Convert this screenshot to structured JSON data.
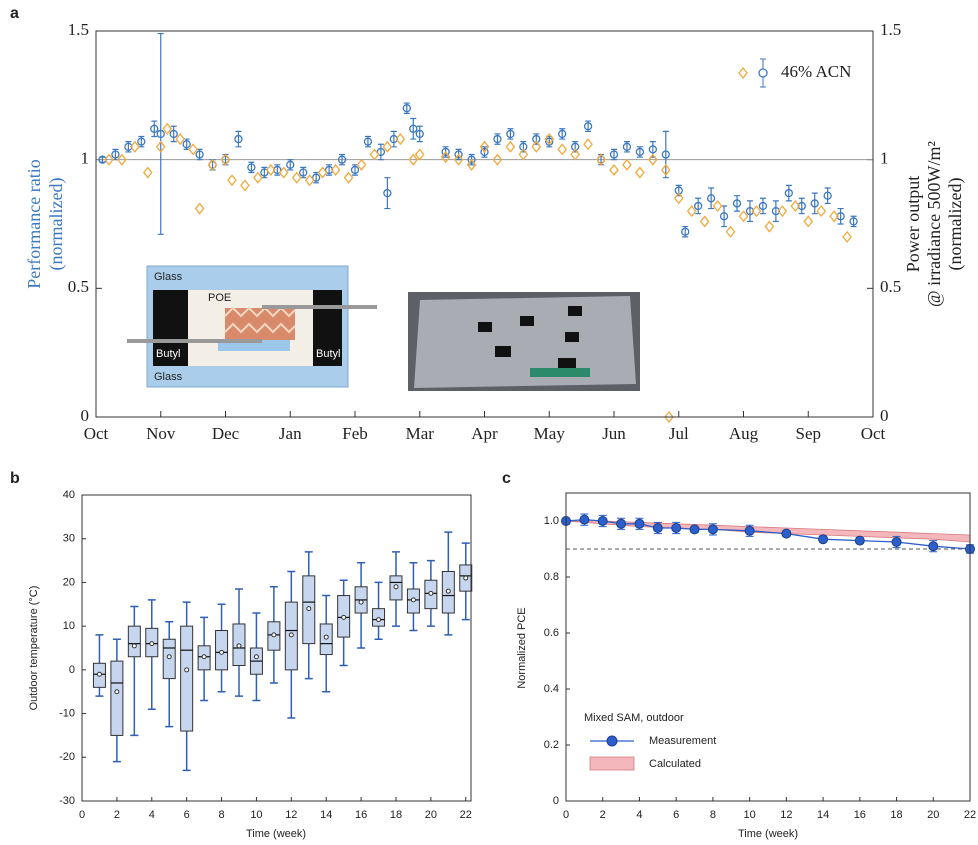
{
  "chart_data": [
    {
      "type": "scatter",
      "panel": "a",
      "ylabel": [
        "Performance ratio",
        "(normalized)"
      ],
      "y2label": [
        "Power output",
        "@ irradiance 500W/m²",
        "(normalized)"
      ],
      "xlim": [
        0,
        12
      ],
      "xticks": [
        {
          "value": 0,
          "label": "Oct"
        },
        {
          "value": 1,
          "label": "Nov"
        },
        {
          "value": 2,
          "label": "Dec"
        },
        {
          "value": 3,
          "label": "Jan"
        },
        {
          "value": 4,
          "label": "Feb"
        },
        {
          "value": 5,
          "label": "Mar"
        },
        {
          "value": 6,
          "label": "Apr"
        },
        {
          "value": 7,
          "label": "May"
        },
        {
          "value": 8,
          "label": "Jun"
        },
        {
          "value": 9,
          "label": "Jul"
        },
        {
          "value": 10,
          "label": "Aug"
        },
        {
          "value": 11,
          "label": "Sep"
        },
        {
          "value": 12,
          "label": "Oct"
        }
      ],
      "ylim": [
        0,
        1.5
      ],
      "yticks": [
        0,
        0.5,
        1,
        1.5
      ],
      "y2lim": [
        0,
        1.5
      ],
      "y2ticks": [
        0,
        0.5,
        1,
        1.5
      ],
      "hline": 1,
      "legend": "upper right",
      "series": [
        {
          "name": "46% ACN",
          "color": "#3b78c2",
          "marker": "circle",
          "x": [
            0.1,
            0.3,
            0.5,
            0.7,
            0.9,
            1.0,
            1.2,
            1.4,
            1.6,
            1.8,
            2.0,
            2.2,
            2.4,
            2.6,
            2.8,
            3.0,
            3.2,
            3.4,
            3.6,
            3.8,
            4.0,
            4.2,
            4.4,
            4.5,
            4.6,
            4.8,
            4.9,
            5.0,
            5.4,
            5.6,
            5.8,
            6.0,
            6.2,
            6.4,
            6.6,
            6.8,
            7.0,
            7.2,
            7.4,
            7.6,
            7.8,
            8.0,
            8.2,
            8.4,
            8.6,
            8.8,
            9.0,
            9.1,
            9.3,
            9.5,
            9.7,
            9.9,
            10.1,
            10.3,
            10.5,
            10.7,
            10.9,
            11.1,
            11.3,
            11.5,
            11.7
          ],
          "values": [
            1.0,
            1.02,
            1.05,
            1.07,
            1.12,
            1.1,
            1.1,
            1.06,
            1.02,
            0.98,
            1.0,
            1.08,
            0.97,
            0.95,
            0.96,
            0.98,
            0.95,
            0.93,
            0.96,
            1.0,
            0.96,
            1.07,
            1.03,
            0.87,
            1.08,
            1.2,
            1.12,
            1.1,
            1.03,
            1.02,
            1.0,
            1.03,
            1.08,
            1.1,
            1.05,
            1.08,
            1.07,
            1.1,
            1.05,
            1.13,
            1.0,
            1.02,
            1.05,
            1.03,
            1.04,
            1.02,
            0.88,
            0.72,
            0.82,
            0.85,
            0.78,
            0.83,
            0.8,
            0.82,
            0.8,
            0.87,
            0.82,
            0.83,
            0.86,
            0.78,
            0.76
          ],
          "errors": [
            0.01,
            0.02,
            0.02,
            0.02,
            0.03,
            0.39,
            0.03,
            0.02,
            0.02,
            0.02,
            0.02,
            0.03,
            0.02,
            0.02,
            0.02,
            0.02,
            0.02,
            0.02,
            0.02,
            0.02,
            0.02,
            0.02,
            0.03,
            0.06,
            0.03,
            0.02,
            0.04,
            0.03,
            0.02,
            0.02,
            0.02,
            0.02,
            0.02,
            0.02,
            0.02,
            0.02,
            0.02,
            0.02,
            0.02,
            0.02,
            0.02,
            0.02,
            0.02,
            0.02,
            0.03,
            0.09,
            0.02,
            0.02,
            0.03,
            0.04,
            0.04,
            0.03,
            0.04,
            0.03,
            0.04,
            0.03,
            0.03,
            0.04,
            0.03,
            0.03,
            0.02
          ]
        },
        {
          "color": "#f2a93b",
          "marker": "diamond",
          "axis": "y2",
          "x": [
            0.2,
            0.4,
            0.6,
            0.8,
            1.0,
            1.1,
            1.3,
            1.5,
            1.6,
            1.8,
            2.0,
            2.1,
            2.3,
            2.5,
            2.7,
            2.9,
            3.1,
            3.3,
            3.5,
            3.7,
            3.9,
            4.1,
            4.3,
            4.5,
            4.7,
            4.9,
            5.0,
            5.4,
            5.6,
            5.8,
            6.0,
            6.2,
            6.4,
            6.6,
            6.8,
            7.0,
            7.2,
            7.4,
            7.6,
            7.8,
            8.0,
            8.2,
            8.4,
            8.6,
            8.8,
            8.85,
            9.0,
            9.2,
            9.4,
            9.6,
            9.8,
            10.0,
            10.2,
            10.4,
            10.6,
            10.8,
            11.0,
            11.2,
            11.4,
            11.6
          ],
          "values": [
            1.0,
            1.0,
            1.05,
            0.95,
            1.05,
            1.12,
            1.08,
            1.04,
            0.81,
            0.98,
            1.0,
            0.92,
            0.9,
            0.93,
            0.96,
            0.95,
            0.93,
            0.92,
            0.95,
            0.96,
            0.93,
            0.98,
            1.02,
            1.05,
            1.08,
            1.0,
            1.02,
            1.01,
            1.0,
            0.98,
            1.05,
            1.0,
            1.05,
            1.02,
            1.05,
            1.08,
            1.04,
            1.02,
            1.06,
            1.0,
            0.96,
            0.98,
            0.95,
            1.0,
            0.96,
            0,
            0.85,
            0.8,
            0.76,
            0.82,
            0.72,
            0.78,
            0.8,
            0.74,
            0.8,
            0.82,
            0.76,
            0.8,
            0.78,
            0.7
          ]
        }
      ],
      "annotations": [
        "Glass",
        "POE",
        "Butyl",
        "Butyl",
        "Glass"
      ]
    },
    {
      "type": "box",
      "panel": "b",
      "xlabel": "Time (week)",
      "ylabel": "Outdoor temperature (°C)",
      "xlim": [
        0,
        22.3
      ],
      "xticks": [
        0,
        2,
        4,
        6,
        8,
        10,
        12,
        14,
        16,
        18,
        20,
        22
      ],
      "ylim": [
        -30,
        40
      ],
      "yticks": [
        -30,
        -20,
        -10,
        0,
        10,
        20,
        30,
        40
      ],
      "box_color": "#c7d6ef",
      "whisker_color": "#2f5fb5",
      "x": [
        1,
        2,
        3,
        4,
        5,
        6,
        7,
        8,
        9,
        10,
        11,
        12,
        13,
        14,
        15,
        16,
        17,
        18,
        19,
        20,
        21,
        22
      ],
      "whisker_low": [
        -6,
        -21,
        -15,
        -9,
        -13,
        -23,
        -7,
        -5,
        -6,
        -7,
        -3,
        -11,
        -2,
        -5,
        1,
        5,
        7,
        10,
        9,
        10,
        8,
        11.5
      ],
      "q1": [
        -4,
        -15,
        3,
        3,
        -2,
        -14,
        0,
        0,
        1,
        -1,
        4.5,
        0,
        6,
        3.5,
        7.5,
        13,
        10,
        16,
        13,
        14,
        13,
        18
      ],
      "median": [
        -1,
        -3,
        6,
        6,
        5,
        4.5,
        3,
        4,
        5,
        2,
        8,
        9,
        15.5,
        6,
        12,
        16,
        11.5,
        20,
        16,
        17.5,
        17,
        21.5
      ],
      "q3": [
        1.5,
        2,
        10,
        9.5,
        7,
        10,
        5.5,
        9,
        10.5,
        5,
        11,
        15.5,
        21.5,
        10.5,
        17,
        19,
        14,
        21.5,
        18.5,
        20.5,
        22.5,
        24
      ],
      "whisker_high": [
        8,
        7,
        14.5,
        16,
        11,
        15.5,
        12,
        15,
        18.5,
        13,
        19,
        22.5,
        27,
        17,
        20.5,
        24.5,
        20,
        27,
        24.5,
        25,
        31.5,
        29
      ],
      "mean": [
        -1,
        -5,
        5.5,
        6,
        3,
        0,
        3,
        4,
        5.5,
        3,
        8,
        8,
        14,
        7.5,
        12,
        15.5,
        11.5,
        19,
        16,
        17.5,
        18,
        21
      ]
    },
    {
      "type": "line",
      "panel": "c",
      "xlabel": "Time (week)",
      "ylabel": "Normalized PCE",
      "xlim": [
        0,
        22
      ],
      "xticks": [
        0,
        2,
        4,
        6,
        8,
        10,
        12,
        14,
        16,
        18,
        20,
        22
      ],
      "ylim": [
        0,
        1.1
      ],
      "yticks": [
        0,
        0.2,
        0.4,
        0.6,
        0.8,
        {
          "value": 1,
          "label": "1.0"
        }
      ],
      "reference_line": 0.9,
      "legend": "lower left",
      "legend_title": "Mixed SAM, outdoor",
      "series": [
        {
          "name": "Measurement",
          "color": "#2c5fc9",
          "x": [
            0,
            1,
            2,
            3,
            4,
            5,
            6,
            7,
            8,
            10,
            12,
            14,
            16,
            18,
            20,
            22
          ],
          "values": [
            1.0,
            1.005,
            1.0,
            0.99,
            0.99,
            0.975,
            0.975,
            0.97,
            0.97,
            0.965,
            0.955,
            0.935,
            0.93,
            0.925,
            0.91,
            0.9
          ],
          "errors": [
            0.01,
            0.02,
            0.02,
            0.02,
            0.02,
            0.02,
            0.02,
            0.01,
            0.02,
            0.02,
            0.01,
            0.01,
            0.01,
            0.02,
            0.02,
            0.015
          ]
        }
      ],
      "band": {
        "name": "Calculated",
        "color": "#f4b8bc",
        "x": [
          0,
          2,
          4,
          6,
          8,
          10,
          12,
          14,
          16,
          18,
          20,
          22
        ],
        "upper": [
          1.0,
          1.0,
          0.995,
          0.99,
          0.985,
          0.98,
          0.975,
          0.97,
          0.965,
          0.96,
          0.955,
          0.95
        ],
        "lower": [
          1.0,
          0.99,
          0.98,
          0.975,
          0.97,
          0.96,
          0.955,
          0.95,
          0.945,
          0.94,
          0.935,
          0.925
        ]
      }
    }
  ]
}
